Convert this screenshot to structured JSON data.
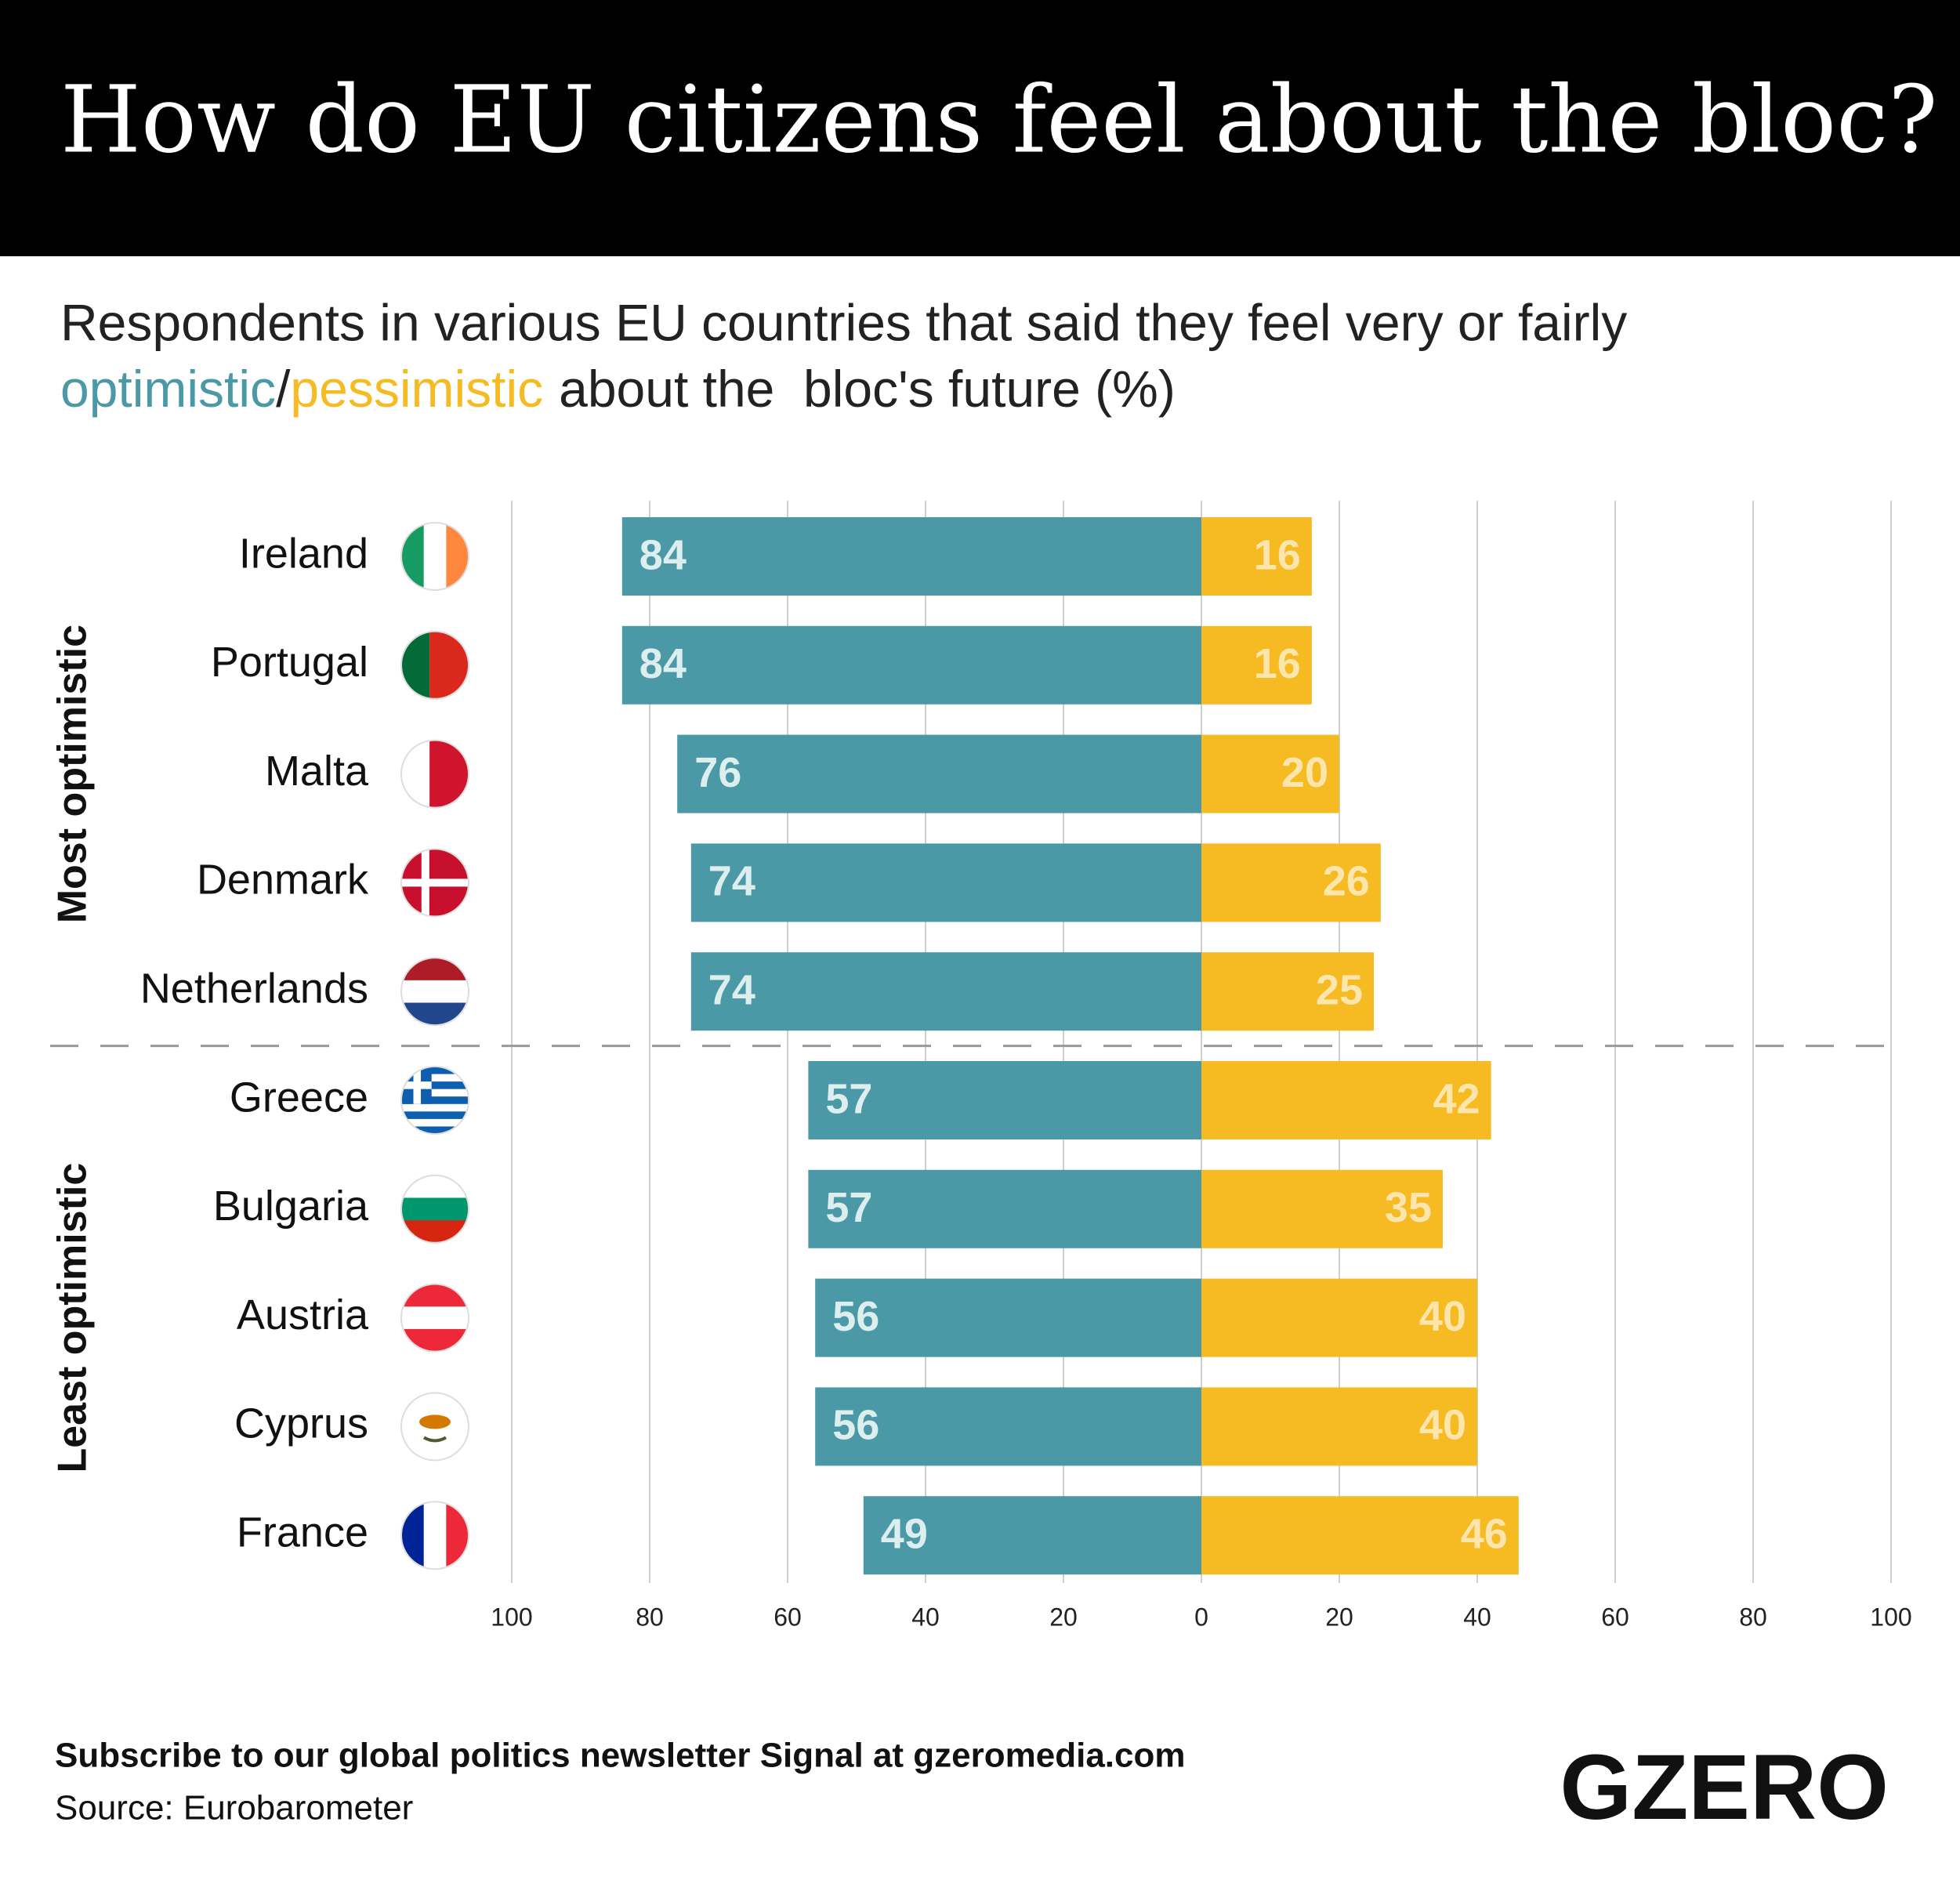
{
  "chart_data": {
    "type": "diverging_bar",
    "title": "How do EU citizens feel about the bloc?",
    "subtitle": {
      "line1": "Respondents in various EU countries that said they feel very or fairly",
      "optimistic": "optimistic",
      "slash": "/",
      "pessimistic": "pessimistic",
      "rest": "about the  bloc's future (%)"
    },
    "categories": [
      "Ireland",
      "Portugal",
      "Malta",
      "Denmark",
      "Netherlands",
      "Greece",
      "Bulgaria",
      "Austria",
      "Cyprus",
      "France"
    ],
    "groups": [
      "Most optimistic",
      "Least optimistic"
    ],
    "series": [
      {
        "name": "optimistic",
        "color": "#4b98a6",
        "side": "left",
        "values": [
          84,
          84,
          76,
          74,
          74,
          57,
          57,
          56,
          56,
          49
        ]
      },
      {
        "name": "pessimistic",
        "color": "#f6bb22",
        "side": "right",
        "values": [
          16,
          16,
          20,
          26,
          25,
          42,
          35,
          40,
          40,
          46
        ]
      }
    ],
    "xlim": [
      0,
      100
    ],
    "left_xticks": [
      100,
      80,
      60,
      40,
      20
    ],
    "right_xticks": [
      0,
      20,
      40,
      60,
      80,
      100
    ],
    "grid": true,
    "footer": {
      "subscribe": "Subscribe to our global politics newsletter Signal at gzeromedia.com",
      "source": "Source: Eurobarometer",
      "logo": "GZERO"
    }
  }
}
